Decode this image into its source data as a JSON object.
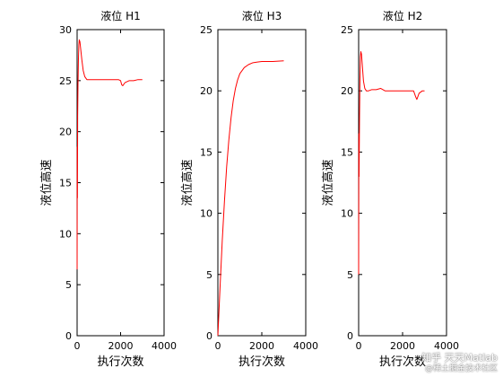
{
  "chart_data": [
    {
      "type": "line",
      "title": "液位 H1",
      "xlabel": "执行次数",
      "ylabel": "液位高速",
      "xlim": [
        0,
        4000
      ],
      "ylim": [
        0,
        30
      ],
      "xticks": [
        0,
        2000,
        4000
      ],
      "yticks": [
        0,
        5,
        10,
        15,
        20,
        25,
        30
      ],
      "grid": false,
      "color": "#ff0000",
      "x": [
        0,
        8,
        15,
        25,
        40,
        60,
        80,
        100,
        130,
        170,
        220,
        280,
        350,
        450,
        600,
        800,
        1000,
        1300,
        1600,
        1900,
        2000,
        2050,
        2100,
        2200,
        2400,
        2600,
        2800,
        3000
      ],
      "y": [
        6.5,
        18.5,
        13.5,
        21.5,
        24.5,
        27.0,
        28.5,
        29.0,
        28.8,
        28.0,
        27.0,
        26.0,
        25.4,
        25.1,
        25.1,
        25.1,
        25.1,
        25.1,
        25.1,
        25.1,
        25.0,
        24.6,
        24.5,
        24.8,
        25.0,
        25.0,
        25.1,
        25.1
      ]
    },
    {
      "type": "line",
      "title": "液位 H3",
      "xlabel": "执行次数",
      "ylabel": "液位高速",
      "xlim": [
        0,
        4000
      ],
      "ylim": [
        0,
        25
      ],
      "xticks": [
        0,
        2000,
        4000
      ],
      "yticks": [
        0,
        5,
        10,
        15,
        20,
        25
      ],
      "grid": false,
      "color": "#ff0000",
      "x": [
        0,
        100,
        200,
        300,
        400,
        500,
        600,
        700,
        800,
        900,
        1000,
        1200,
        1400,
        1600,
        1800,
        2000,
        2200,
        2500,
        3000
      ],
      "y": [
        0,
        4.0,
        7.8,
        11.0,
        13.8,
        16.0,
        17.8,
        19.2,
        20.2,
        20.9,
        21.4,
        21.9,
        22.15,
        22.3,
        22.35,
        22.4,
        22.4,
        22.4,
        22.45
      ]
    },
    {
      "type": "line",
      "title": "液位 H2",
      "xlabel": "执行次数",
      "ylabel": "液位高速",
      "xlim": [
        0,
        4000
      ],
      "ylim": [
        0,
        25
      ],
      "xticks": [
        0,
        2000,
        4000
      ],
      "yticks": [
        0,
        5,
        10,
        15,
        20,
        25
      ],
      "grid": false,
      "color": "#ff0000",
      "x": [
        0,
        10,
        20,
        40,
        60,
        80,
        100,
        130,
        170,
        220,
        280,
        350,
        450,
        600,
        800,
        1000,
        1200,
        1400,
        1700,
        2000,
        2300,
        2500,
        2600,
        2650,
        2750,
        2900,
        3000
      ],
      "y": [
        5.0,
        16.5,
        13.0,
        18.0,
        21.0,
        22.8,
        23.2,
        23.0,
        22.0,
        20.8,
        20.2,
        20.0,
        20.0,
        20.1,
        20.1,
        20.2,
        20.0,
        20.0,
        20.0,
        20.0,
        20.0,
        20.0,
        19.5,
        19.3,
        19.8,
        20.0,
        20.0
      ]
    }
  ],
  "watermark": {
    "line1": "知乎 天天Matlab",
    "line2": "@稀土掘金技术社区"
  }
}
